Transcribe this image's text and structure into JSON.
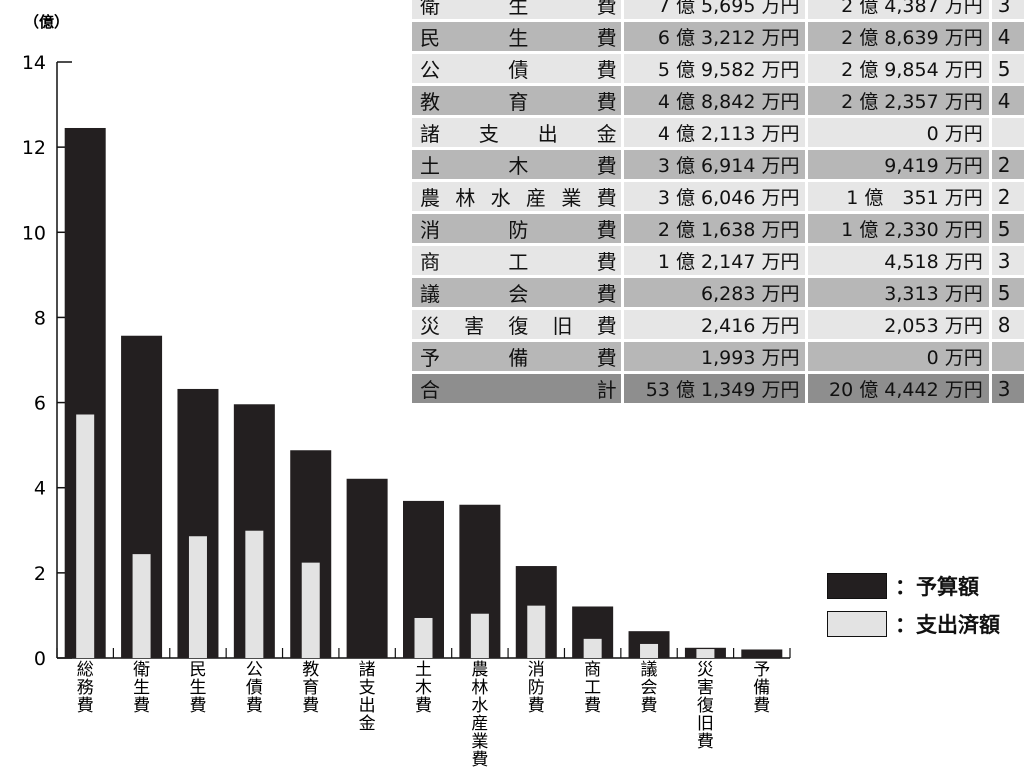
{
  "chart_data": {
    "type": "bar",
    "unit_label": "（億）",
    "ylim": [
      0,
      14
    ],
    "yticks": [
      "0",
      "2",
      "4",
      "6",
      "8",
      "10",
      "12",
      "14"
    ],
    "categories": [
      "総務費",
      "衛生費",
      "民生費",
      "公債費",
      "教育費",
      "諸支出金",
      "土木費",
      "農林水産業費",
      "消防費",
      "商工費",
      "議会費",
      "災害復旧費",
      "予備費"
    ],
    "series": [
      {
        "name": "予算額",
        "color": "#231f20",
        "values": [
          12.45,
          7.57,
          6.32,
          5.96,
          4.88,
          4.21,
          3.69,
          3.6,
          2.16,
          1.21,
          0.63,
          0.24,
          0.2
        ]
      },
      {
        "name": "支出済額",
        "color": "#e3e3e3",
        "values": [
          5.72,
          2.44,
          2.86,
          2.99,
          2.24,
          0.0,
          0.94,
          1.04,
          1.23,
          0.45,
          0.33,
          0.21,
          0.0
        ]
      }
    ]
  },
  "table": {
    "rows": [
      {
        "name": "衛生費",
        "budget": "7 億 5,695 万円",
        "spent": "2 億 4,387 万円",
        "ratio": "3"
      },
      {
        "name": "民生費",
        "budget": "6 億 3,212 万円",
        "spent": "2 億 8,639 万円",
        "ratio": "4"
      },
      {
        "name": "公債費",
        "budget": "5 億 9,582 万円",
        "spent": "2 億 9,854 万円",
        "ratio": "5"
      },
      {
        "name": "教育費",
        "budget": "4 億 8,842 万円",
        "spent": "2 億 2,357 万円",
        "ratio": "4"
      },
      {
        "name": "諸支出金",
        "budget": "4 億 2,113 万円",
        "spent": "0 万円",
        "ratio": ""
      },
      {
        "name": "土木費",
        "budget": "3 億 6,914 万円",
        "spent": "9,419 万円",
        "ratio": "2"
      },
      {
        "name": "農林水産業費",
        "budget": "3 億 6,046 万円",
        "spent": "1 億　351 万円",
        "ratio": "2"
      },
      {
        "name": "消防費",
        "budget": "2 億 1,638 万円",
        "spent": "1 億 2,330 万円",
        "ratio": "5"
      },
      {
        "name": "商工費",
        "budget": "1 億 2,147 万円",
        "spent": "4,518 万円",
        "ratio": "3"
      },
      {
        "name": "議会費",
        "budget": "6,283 万円",
        "spent": "3,313 万円",
        "ratio": "5"
      },
      {
        "name": "災害復旧費",
        "budget": "2,416 万円",
        "spent": "2,053 万円",
        "ratio": "8"
      },
      {
        "name": "予備費",
        "budget": "1,993 万円",
        "spent": "0 万円",
        "ratio": ""
      }
    ],
    "total": {
      "name": "合計",
      "budget": "53 億 1,349 万円",
      "spent": "20 億 4,442 万円",
      "ratio": "3"
    }
  },
  "legend": {
    "budget_label": "：予算額",
    "spent_label": "：支出済額"
  }
}
